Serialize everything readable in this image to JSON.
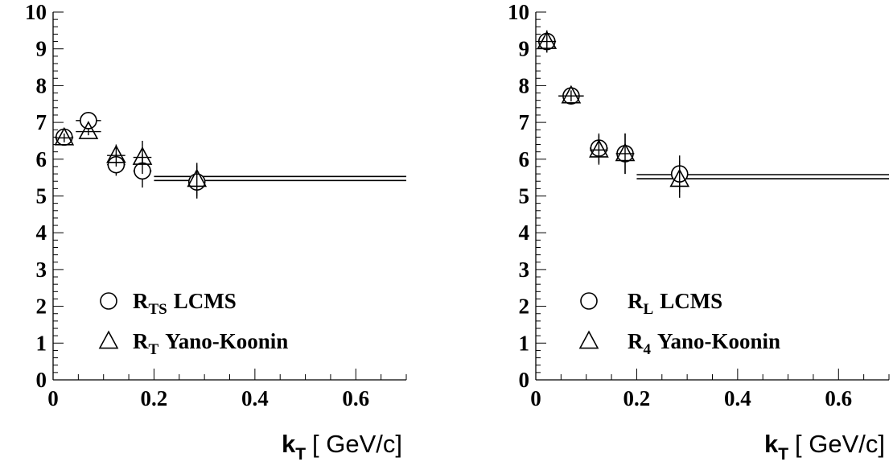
{
  "chart_data": [
    {
      "type": "scatter",
      "xlabel": "k",
      "xlabel_sub": "T",
      "xunit": "[ GeV/c]",
      "xlim": [
        0,
        0.7
      ],
      "ylim": [
        0,
        10
      ],
      "x_ticks": [
        "0",
        "0.2",
        "0.4",
        "0.6"
      ],
      "y_ticks": [
        "0",
        "1",
        "2",
        "3",
        "4",
        "5",
        "6",
        "7",
        "8",
        "9",
        "10"
      ],
      "legend_position": "bottom-left",
      "series": [
        {
          "name": "R",
          "name_sub": "TS",
          "name_suffix": "LCMS",
          "marker": "circle",
          "points": [
            {
              "x": 0.022,
              "y": 6.6,
              "xerr": 0.018,
              "yerr": 0.12
            },
            {
              "x": 0.07,
              "y": 7.05,
              "xerr": 0.025,
              "yerr": 0.1
            },
            {
              "x": 0.125,
              "y": 5.85,
              "xerr": 0.018,
              "yerr": 0.3
            },
            {
              "x": 0.177,
              "y": 5.68,
              "xerr": 0.018,
              "yerr": 0.45
            },
            {
              "x": 0.285,
              "y": 5.38,
              "xerr": 0.0,
              "yerr": 0.45
            }
          ]
        },
        {
          "name": "R",
          "name_sub": "T",
          "name_suffix": "Yano-Koonin",
          "marker": "triangle",
          "points": [
            {
              "x": 0.022,
              "y": 6.58,
              "xerr": 0.018,
              "yerr": 0.12
            },
            {
              "x": 0.07,
              "y": 6.75,
              "xerr": 0.025,
              "yerr": 0.1
            },
            {
              "x": 0.125,
              "y": 6.1,
              "xerr": 0.018,
              "yerr": 0.3
            },
            {
              "x": 0.177,
              "y": 6.05,
              "xerr": 0.018,
              "yerr": 0.45
            },
            {
              "x": 0.285,
              "y": 5.45,
              "xerr": 0.0,
              "yerr": 0.45
            }
          ]
        }
      ],
      "fit_lines": [
        {
          "x": [
            0.2,
            0.7
          ],
          "y": 5.53
        },
        {
          "x": [
            0.2,
            0.7
          ],
          "y": 5.42
        }
      ]
    },
    {
      "type": "scatter",
      "xlabel": "k",
      "xlabel_sub": "T",
      "xunit": "[ GeV/c]",
      "xlim": [
        0,
        0.7
      ],
      "ylim": [
        0,
        10
      ],
      "x_ticks": [
        "0",
        "0.2",
        "0.4",
        "0.6"
      ],
      "y_ticks": [
        "0",
        "1",
        "2",
        "3",
        "4",
        "5",
        "6",
        "7",
        "8",
        "9",
        "10"
      ],
      "legend_position": "bottom-left",
      "series": [
        {
          "name": "R",
          "name_sub": "L",
          "name_suffix": "LCMS",
          "marker": "circle",
          "points": [
            {
              "x": 0.022,
              "y": 9.2,
              "xerr": 0.018,
              "yerr": 0.3
            },
            {
              "x": 0.07,
              "y": 7.72,
              "xerr": 0.025,
              "yerr": 0.15
            },
            {
              "x": 0.125,
              "y": 6.3,
              "xerr": 0.018,
              "yerr": 0.4
            },
            {
              "x": 0.177,
              "y": 6.15,
              "xerr": 0.018,
              "yerr": 0.55
            },
            {
              "x": 0.285,
              "y": 5.6,
              "xerr": 0.0,
              "yerr": 0.5
            }
          ]
        },
        {
          "name": "R",
          "name_sub": "4",
          "name_suffix": "Yano-Koonin",
          "marker": "triangle",
          "points": [
            {
              "x": 0.022,
              "y": 9.2,
              "xerr": 0.018,
              "yerr": 0.3
            },
            {
              "x": 0.07,
              "y": 7.72,
              "xerr": 0.025,
              "yerr": 0.15
            },
            {
              "x": 0.125,
              "y": 6.25,
              "xerr": 0.018,
              "yerr": 0.4
            },
            {
              "x": 0.177,
              "y": 6.15,
              "xerr": 0.018,
              "yerr": 0.55
            },
            {
              "x": 0.285,
              "y": 5.45,
              "xerr": 0.0,
              "yerr": 0.5
            }
          ]
        }
      ],
      "fit_lines": [
        {
          "x": [
            0.2,
            0.7
          ],
          "y": 5.58
        },
        {
          "x": [
            0.2,
            0.7
          ],
          "y": 5.47
        }
      ]
    }
  ]
}
